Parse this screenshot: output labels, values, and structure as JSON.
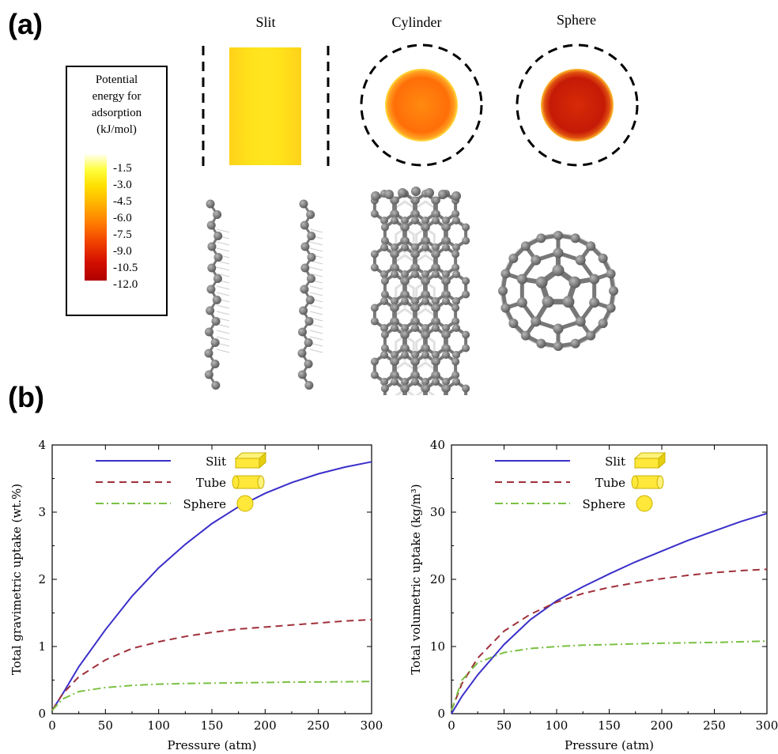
{
  "panels": {
    "a": "(a)",
    "b": "(b)"
  },
  "structure_titles": [
    "Slit",
    "Cylinder",
    "Sphere"
  ],
  "colorbar": {
    "title_lines": [
      "Potential",
      "energy for",
      "adsorption",
      "(kJ/mol)"
    ],
    "ticks": [
      "-1.5",
      "-3.0",
      "-4.5",
      "-6.0",
      "-7.5",
      "-9.0",
      "-10.5",
      "-12.0"
    ]
  },
  "colors": {
    "slit": "#3b2fc9",
    "tube": "#a0303a",
    "sphere": "#7ac142",
    "shape": "#ffe83a"
  },
  "chart_data": [
    {
      "type": "line",
      "xlabel": "Pressure (atm)",
      "ylabel": "Total gravimetric uptake (wt.%)",
      "xlim": [
        0,
        300
      ],
      "ylim": [
        0,
        4
      ],
      "xticks": [
        "0",
        "50",
        "100",
        "150",
        "200",
        "250",
        "300"
      ],
      "yticks": [
        "0",
        "1",
        "2",
        "3",
        "4"
      ],
      "legend": "top-left",
      "series": [
        {
          "name": "Slit",
          "style": "solid",
          "x": [
            0,
            10,
            25,
            50,
            75,
            100,
            125,
            150,
            175,
            200,
            225,
            250,
            275,
            300
          ],
          "values": [
            0.05,
            0.3,
            0.7,
            1.25,
            1.75,
            2.17,
            2.52,
            2.83,
            3.08,
            3.28,
            3.44,
            3.57,
            3.67,
            3.75
          ]
        },
        {
          "name": "Tube",
          "style": "dashed",
          "x": [
            0,
            10,
            25,
            50,
            75,
            100,
            125,
            150,
            175,
            200,
            225,
            250,
            275,
            300
          ],
          "values": [
            0.05,
            0.3,
            0.55,
            0.8,
            0.97,
            1.07,
            1.15,
            1.21,
            1.26,
            1.29,
            1.32,
            1.35,
            1.38,
            1.4
          ]
        },
        {
          "name": "Sphere",
          "style": "dashdot",
          "x": [
            0,
            10,
            25,
            50,
            75,
            100,
            125,
            150,
            175,
            200,
            225,
            250,
            275,
            300
          ],
          "values": [
            0.05,
            0.22,
            0.33,
            0.39,
            0.42,
            0.44,
            0.45,
            0.455,
            0.46,
            0.465,
            0.47,
            0.472,
            0.475,
            0.48
          ]
        }
      ]
    },
    {
      "type": "line",
      "xlabel": "Pressure (atm)",
      "ylabel": "Total volumetric uptake (kg/m³)",
      "xlim": [
        0,
        300
      ],
      "ylim": [
        0,
        40
      ],
      "xticks": [
        "0",
        "50",
        "100",
        "150",
        "200",
        "250",
        "300"
      ],
      "yticks": [
        "0",
        "10",
        "20",
        "30",
        "40"
      ],
      "legend": "top-left",
      "series": [
        {
          "name": "Slit",
          "style": "solid",
          "x": [
            0,
            10,
            25,
            50,
            75,
            100,
            125,
            150,
            175,
            200,
            225,
            250,
            275,
            300
          ],
          "values": [
            0,
            2.6,
            5.8,
            10.3,
            14.0,
            16.8,
            18.9,
            20.8,
            22.6,
            24.2,
            25.8,
            27.2,
            28.6,
            29.8
          ]
        },
        {
          "name": "Tube",
          "style": "dashed",
          "x": [
            0,
            10,
            25,
            50,
            75,
            100,
            125,
            150,
            175,
            200,
            225,
            250,
            275,
            300
          ],
          "values": [
            0.5,
            4.5,
            8.3,
            12.3,
            14.8,
            16.6,
            17.9,
            18.8,
            19.5,
            20.1,
            20.6,
            21.0,
            21.3,
            21.5
          ]
        },
        {
          "name": "Sphere",
          "style": "dashdot",
          "x": [
            0,
            10,
            25,
            50,
            75,
            100,
            125,
            150,
            175,
            200,
            225,
            250,
            275,
            300
          ],
          "values": [
            0.5,
            5.0,
            7.6,
            9.1,
            9.7,
            10.0,
            10.2,
            10.3,
            10.4,
            10.5,
            10.55,
            10.6,
            10.7,
            10.8
          ]
        }
      ]
    }
  ]
}
